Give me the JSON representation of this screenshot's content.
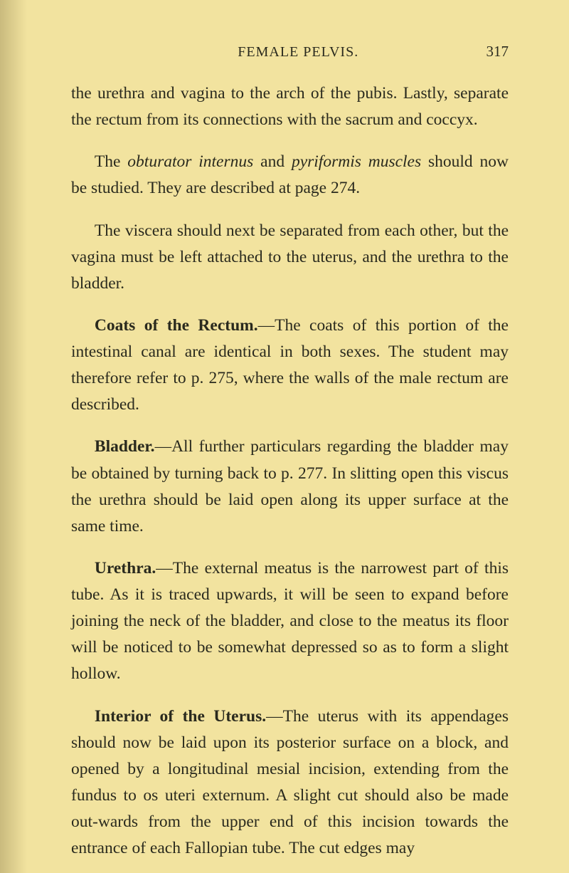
{
  "header": {
    "running_title": "FEMALE PELVIS.",
    "page_number": "317"
  },
  "paragraphs": {
    "p1_a": "the urethra and vagina to the arch of the pubis. Lastly, separate the rectum from its connections with the sacrum and coccyx.",
    "p2_a": "The ",
    "p2_i1": "obturator internus",
    "p2_b": " and ",
    "p2_i2": "pyriformis muscles",
    "p2_c": " should now be studied. They are described at page 274.",
    "p3_a": "The viscera should next be separated from each other, but the vagina must be left attached to the uterus, and the urethra to the bladder.",
    "coats_head": "Coats of the Rectum.",
    "coats_body": "—The coats of this portion of the intestinal canal are identical in both sexes. The student may therefore refer to p. 275, where the walls of the male rectum are described.",
    "bladder_head": "Bladder.",
    "bladder_body": "—All further particulars regarding the bladder may be obtained by turning back to p. 277. In slitting open this viscus the urethra should be laid open along its upper surface at the same time.",
    "urethra_head": "Urethra.",
    "urethra_body": "—The external meatus is the narrowest part of this tube. As it is traced upwards, it will be seen to expand before joining the neck of the bladder, and close to the meatus its floor will be noticed to be somewhat depressed so as to form a slight hollow.",
    "interior_head": "Interior of the Uterus.",
    "interior_body": "—The uterus with its appendages should now be laid upon its posterior surface on a block, and opened by a longitudinal mesial incision, extending from the fundus to os uteri externum. A slight cut should also be made out-wards from the upper end of this incision towards the entrance of each Fallopian tube. The cut edges may"
  }
}
